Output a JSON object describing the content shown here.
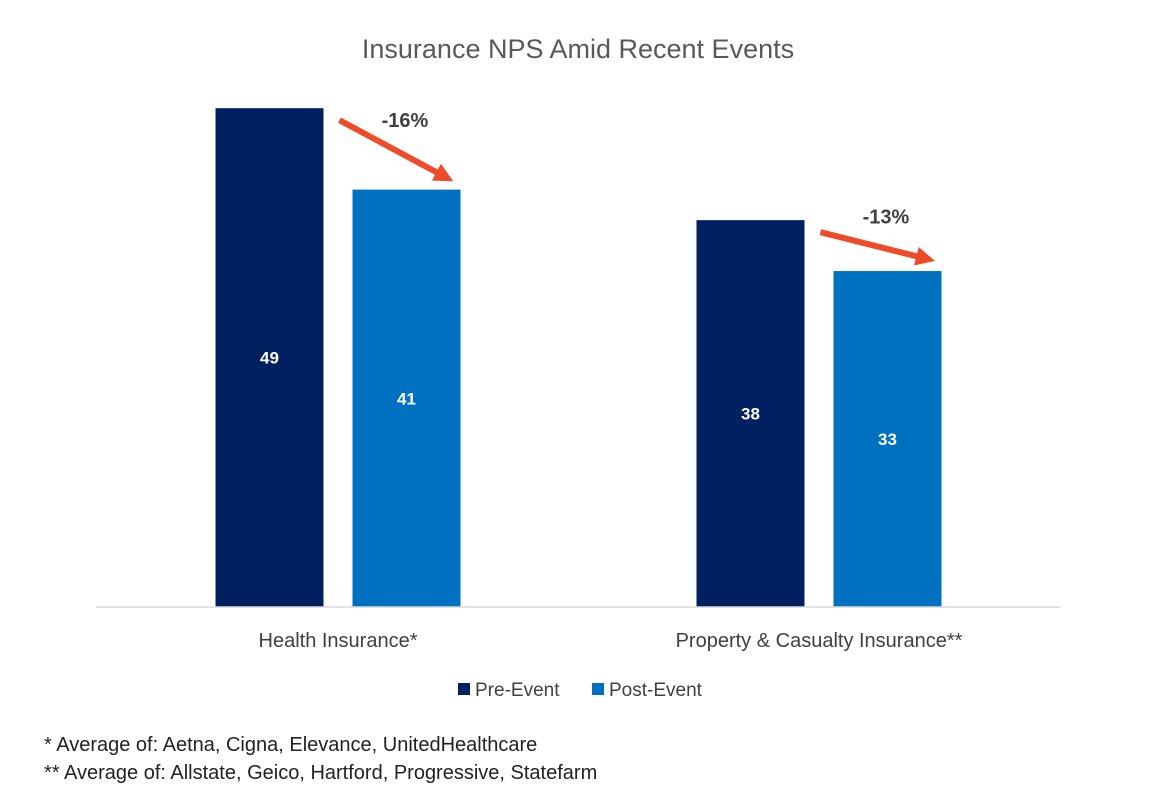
{
  "chart_data": {
    "type": "bar",
    "title": "Insurance NPS Amid Recent Events",
    "categories": [
      "Health Insurance*",
      "Property & Casualty Insurance**"
    ],
    "series": [
      {
        "name": "Pre-Event",
        "values": [
          49,
          38
        ],
        "color": "#002060"
      },
      {
        "name": "Post-Event",
        "values": [
          41,
          33
        ],
        "color": "#0070C0"
      }
    ],
    "ylim": [
      0,
      50
    ],
    "grid": false,
    "legend": "bottom",
    "data_labels": true,
    "annotations": [
      {
        "category": "Health Insurance*",
        "text": "-16%",
        "color": "#EE4B2B"
      },
      {
        "category": "Property & Casualty Insurance**",
        "text": "-13%",
        "color": "#EE4B2B"
      }
    ]
  },
  "footnotes": [
    "* Average of: Aetna, Cigna, Elevance, UnitedHealthcare",
    "** Average of: Allstate, Geico, Hartford, Progressive, Statefarm"
  ]
}
